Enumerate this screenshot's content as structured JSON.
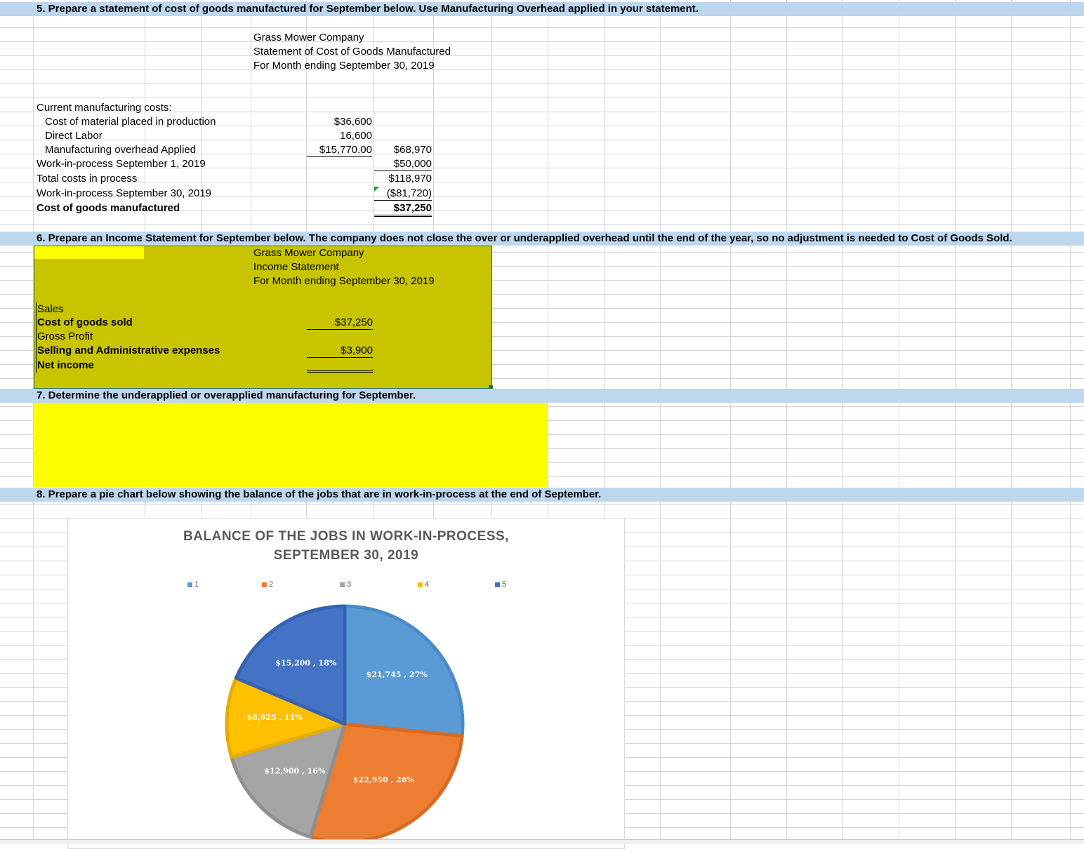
{
  "q5": {
    "heading": "5. Prepare a statement of cost of goods manufactured for September below. Use Manufacturing Overhead applied in your statement.",
    "company": "Grass Mower Company",
    "statement": "Statement of Cost of Goods Manufactured",
    "period": "For Month ending September 30, 2019",
    "rows": [
      {
        "label": "Current manufacturing costs:",
        "c1": "",
        "c2": ""
      },
      {
        "label": "Cost of material placed in production",
        "c1": "$36,600",
        "c2": ""
      },
      {
        "label": "Direct Labor",
        "c1": "16,600",
        "c2": ""
      },
      {
        "label": "Manufacturing overhead Applied",
        "c1": "$15,770.00",
        "c2": "$68,970"
      },
      {
        "label": "Work-in-process September 1, 2019",
        "c1": "",
        "c2": "$50,000"
      },
      {
        "label": "Total costs in process",
        "c1": "",
        "c2": "$118,970"
      },
      {
        "label": "Work-in-process September 30, 2019",
        "c1": "",
        "c2": "($81,720)"
      },
      {
        "label": "Cost of goods manufactured",
        "c1": "",
        "c2": "$37,250"
      }
    ]
  },
  "q6": {
    "heading": "6. Prepare an Income Statement for September below.  The company does not close the over or underapplied overhead until the end of the year, so no adjustment is needed to Cost of Goods Sold.",
    "company": "Grass Mower Company",
    "statement": "Income Statement",
    "period": "For Month ending September 30, 2019",
    "rows": [
      {
        "label": "Sales",
        "value": ""
      },
      {
        "label": "Cost of goods sold",
        "value": "$37,250"
      },
      {
        "label": "Gross Profit",
        "value": ""
      },
      {
        "label": "Selling and Administrative expenses",
        "value": "$3,900"
      },
      {
        "label": "Net income",
        "value": ""
      }
    ]
  },
  "q7": {
    "heading": "7. Determine the underapplied or overapplied manufacturing for September."
  },
  "q8": {
    "heading": "8. Prepare a pie chart below showing the balance of the jobs that are in work-in-process at the end of September."
  },
  "chart_data": {
    "type": "pie",
    "title": "BALANCE OF THE JOBS IN WORK-IN-PROCESS, SEPTEMBER 30, 2019",
    "title_lines": [
      "BALANCE OF THE JOBS IN WORK-IN-PROCESS,",
      "SEPTEMBER 30, 2019"
    ],
    "categories": [
      "1",
      "2",
      "3",
      "4",
      "5"
    ],
    "values": [
      21745,
      22950,
      12900,
      8925,
      15200
    ],
    "percents": [
      27,
      28,
      16,
      11,
      18
    ],
    "data_labels": [
      "$21,745 , 27%",
      "$22,950 , 28%",
      "$12,900 , 16%",
      "$8,925 , 11%",
      "$15,200 , 18%"
    ],
    "colors": [
      "#5b9bd5",
      "#ed7d31",
      "#a5a5a5",
      "#ffc000",
      "#4472c4"
    ],
    "border_colors": [
      "#4a8ac8",
      "#d96a22",
      "#8f8f8f",
      "#e6ad00",
      "#3562b3"
    ],
    "legend_position": "top"
  }
}
